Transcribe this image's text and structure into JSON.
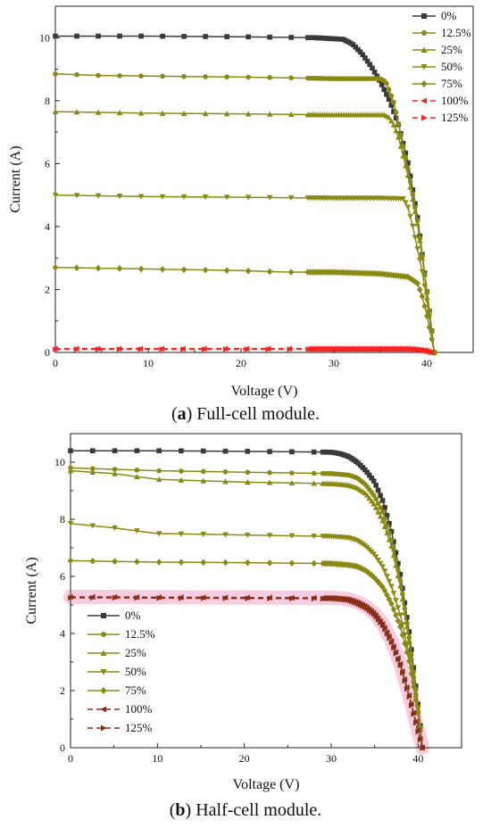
{
  "colors": {
    "dark": "#3a3a3a",
    "olive": "#8a8a12",
    "red": "#ff2020",
    "brown": "#8a2e18",
    "highlight": "#f6c4dc"
  },
  "chart_data": [
    {
      "type": "line",
      "xlabel": "Voltage (V)",
      "ylabel": "Current (A)",
      "xlim": [
        0,
        45
      ],
      "ylim": [
        0,
        11
      ],
      "xticks": [
        0,
        10,
        20,
        30,
        40
      ],
      "yticks": [
        0,
        2,
        4,
        6,
        8,
        10
      ],
      "legend_position": "top-right",
      "series": [
        {
          "name": "0%",
          "marker": "square",
          "color": "dark",
          "dash": false,
          "x": [
            0,
            10,
            20,
            28,
            31,
            32,
            33,
            34,
            35,
            36,
            37,
            38,
            39,
            40,
            40.5,
            40.8
          ],
          "y": [
            10.05,
            10.05,
            10.03,
            10.0,
            9.95,
            9.8,
            9.5,
            9.1,
            8.6,
            8.0,
            7.2,
            6.0,
            4.3,
            2.0,
            0.8,
            0
          ]
        },
        {
          "name": "12.5%",
          "marker": "circle",
          "color": "olive",
          "dash": false,
          "x": [
            0,
            5,
            10,
            20,
            30,
            35,
            35.6,
            36,
            36.5,
            37,
            38,
            39,
            40,
            40.5,
            40.8
          ],
          "y": [
            8.85,
            8.8,
            8.78,
            8.75,
            8.7,
            8.7,
            8.6,
            8.3,
            7.9,
            7.2,
            5.8,
            4.2,
            2.0,
            0.8,
            0
          ]
        },
        {
          "name": "25%",
          "marker": "triangle-up",
          "color": "olive",
          "dash": false,
          "x": [
            0,
            10,
            20,
            30,
            35.5,
            36,
            36.5,
            37,
            38,
            39,
            40,
            40.5,
            40.8
          ],
          "y": [
            7.65,
            7.6,
            7.58,
            7.55,
            7.55,
            7.45,
            7.2,
            6.8,
            5.6,
            4.1,
            2.0,
            0.8,
            0
          ]
        },
        {
          "name": "50%",
          "marker": "triangle-down",
          "color": "olive",
          "dash": false,
          "x": [
            0,
            10,
            20,
            30,
            35,
            37.5,
            38,
            38.5,
            39,
            39.5,
            40,
            40.5,
            40.8
          ],
          "y": [
            5.0,
            4.95,
            4.93,
            4.9,
            4.9,
            4.88,
            4.6,
            4.0,
            3.3,
            2.6,
            1.7,
            0.7,
            0
          ]
        },
        {
          "name": "75%",
          "marker": "diamond",
          "color": "olive",
          "dash": false,
          "x": [
            0,
            10,
            20,
            25,
            30,
            35,
            38,
            39,
            39.5,
            40,
            40.5,
            40.8
          ],
          "y": [
            2.7,
            2.65,
            2.6,
            2.55,
            2.55,
            2.5,
            2.4,
            2.2,
            1.8,
            1.2,
            0.5,
            0
          ]
        },
        {
          "name": "100%",
          "marker": "triangle-left",
          "color": "red",
          "dash": true,
          "x": [
            0,
            5,
            10,
            15,
            20,
            25,
            27,
            28,
            29,
            30,
            31,
            32,
            33,
            34,
            35,
            36,
            37,
            38,
            39,
            40,
            40.5
          ],
          "y": [
            0.12,
            0.12,
            0.12,
            0.12,
            0.12,
            0.12,
            0.12,
            0.12,
            0.12,
            0.12,
            0.12,
            0.12,
            0.12,
            0.12,
            0.12,
            0.12,
            0.12,
            0.12,
            0.1,
            0.06,
            0
          ]
        },
        {
          "name": "125%",
          "marker": "triangle-right",
          "color": "red",
          "dash": true,
          "x": [
            0,
            5,
            10,
            15,
            20,
            25,
            27,
            28,
            29,
            30,
            31,
            32,
            33,
            34,
            35,
            36,
            37,
            38,
            39,
            40,
            40.5
          ],
          "y": [
            0.1,
            0.1,
            0.1,
            0.1,
            0.1,
            0.1,
            0.1,
            0.1,
            0.1,
            0.1,
            0.1,
            0.1,
            0.1,
            0.1,
            0.1,
            0.1,
            0.1,
            0.1,
            0.08,
            0.04,
            0
          ]
        }
      ]
    },
    {
      "type": "line",
      "xlabel": "Voltage (V)",
      "ylabel": "Current (A)",
      "xlim": [
        0,
        45
      ],
      "ylim": [
        0,
        11
      ],
      "xticks": [
        0,
        10,
        20,
        30,
        40
      ],
      "yticks": [
        0,
        2,
        4,
        6,
        8,
        10
      ],
      "legend_position": "bottom-left",
      "series": [
        {
          "name": "0%",
          "marker": "square",
          "color": "dark",
          "dash": false,
          "x": [
            0,
            10,
            20,
            30,
            31,
            32,
            33,
            34,
            35,
            36,
            37,
            38,
            39,
            40,
            40.5
          ],
          "y": [
            10.4,
            10.4,
            10.38,
            10.35,
            10.3,
            10.2,
            10.0,
            9.7,
            9.3,
            8.6,
            7.5,
            6.0,
            4.0,
            1.5,
            0
          ]
        },
        {
          "name": "12.5%",
          "marker": "circle",
          "color": "olive",
          "dash": false,
          "x": [
            0,
            5,
            10,
            20,
            30,
            32,
            33,
            34,
            35,
            36,
            37,
            38,
            39,
            40,
            40.5
          ],
          "y": [
            9.8,
            9.75,
            9.7,
            9.65,
            9.6,
            9.55,
            9.45,
            9.2,
            8.8,
            8.2,
            7.2,
            5.8,
            3.8,
            1.4,
            0
          ]
        },
        {
          "name": "25%",
          "marker": "triangle-up",
          "color": "olive",
          "dash": false,
          "x": [
            0,
            5,
            10,
            20,
            30,
            32,
            33,
            34,
            35,
            36,
            37,
            38,
            39,
            40,
            40.5
          ],
          "y": [
            9.7,
            9.6,
            9.4,
            9.3,
            9.25,
            9.2,
            9.1,
            8.9,
            8.5,
            7.9,
            7.0,
            5.6,
            3.7,
            1.3,
            0
          ]
        },
        {
          "name": "50%",
          "marker": "triangle-down",
          "color": "olive",
          "dash": false,
          "x": [
            0,
            5,
            10,
            20,
            30,
            32,
            33,
            34,
            35,
            36,
            37,
            38,
            39,
            40,
            40.5
          ],
          "y": [
            7.85,
            7.7,
            7.5,
            7.45,
            7.4,
            7.35,
            7.25,
            7.05,
            6.75,
            6.3,
            5.6,
            4.6,
            3.2,
            1.2,
            0
          ]
        },
        {
          "name": "75%",
          "marker": "diamond",
          "color": "olive",
          "dash": false,
          "x": [
            0,
            10,
            20,
            30,
            32,
            33,
            34,
            35,
            36,
            37,
            38,
            39,
            40,
            40.5
          ],
          "y": [
            6.55,
            6.5,
            6.48,
            6.45,
            6.4,
            6.35,
            6.2,
            5.95,
            5.6,
            5.0,
            4.2,
            3.0,
            1.2,
            0
          ]
        },
        {
          "name": "100%",
          "marker": "triangle-left",
          "color": "brown",
          "dash": true,
          "x": [
            0,
            5,
            10,
            20,
            28,
            30,
            31,
            32,
            33,
            34,
            35,
            36,
            37,
            38,
            39,
            40,
            40.5
          ],
          "y": [
            5.28,
            5.28,
            5.27,
            5.26,
            5.25,
            5.25,
            5.23,
            5.2,
            5.1,
            4.95,
            4.7,
            4.3,
            3.7,
            2.9,
            1.8,
            0.6,
            0
          ]
        },
        {
          "name": "125%",
          "marker": "triangle-right",
          "color": "brown",
          "dash": true,
          "x": [
            0,
            5,
            10,
            20,
            28,
            30,
            31,
            32,
            33,
            34,
            35,
            36,
            37,
            38,
            39,
            40,
            40.5
          ],
          "y": [
            5.25,
            5.25,
            5.24,
            5.23,
            5.22,
            5.22,
            5.2,
            5.17,
            5.05,
            4.9,
            4.65,
            4.25,
            3.65,
            2.85,
            1.75,
            0.55,
            0
          ]
        }
      ]
    }
  ],
  "captions": {
    "a_letter": "a",
    "a_text": " Full-cell module.",
    "b_letter": "b",
    "b_text": " Half-cell module."
  }
}
